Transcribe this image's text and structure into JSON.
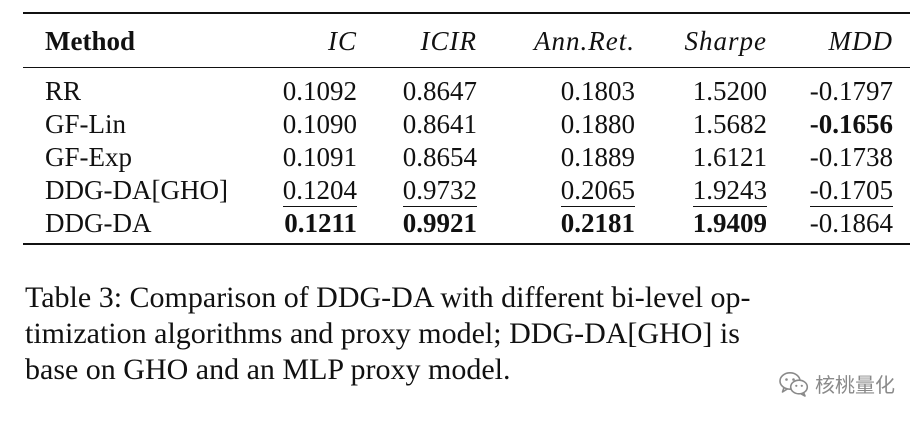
{
  "table": {
    "headers": [
      "Method",
      "IC",
      "ICIR",
      "Ann.Ret.",
      "Sharpe",
      "MDD"
    ],
    "rows": [
      {
        "method": "RR",
        "values": [
          "0.1092",
          "0.8647",
          "0.1803",
          "1.5200",
          "-0.1797"
        ]
      },
      {
        "method": "GF-Lin",
        "values": [
          "0.1090",
          "0.8641",
          "0.1880",
          "1.5682",
          "-0.1656"
        ]
      },
      {
        "method": "GF-Exp",
        "values": [
          "0.1091",
          "0.8654",
          "0.1889",
          "1.6121",
          "-0.1738"
        ]
      },
      {
        "method": "DDG-DA[GHO]",
        "values": [
          "0.1204",
          "0.9732",
          "0.2065",
          "1.9243",
          "-0.1705"
        ]
      },
      {
        "method": "DDG-DA",
        "values": [
          "0.1211",
          "0.9921",
          "0.2181",
          "1.9409",
          "-0.1864"
        ]
      }
    ]
  },
  "caption": {
    "lines": [
      "Table 3: Comparison of DDG-DA with different bi-level op-",
      "timization algorithms and proxy model; DDG-DA[GHO] is",
      "base on GHO and an MLP proxy model."
    ]
  },
  "watermark": {
    "icon": "wechat-icon",
    "text": "核桃量化"
  }
}
